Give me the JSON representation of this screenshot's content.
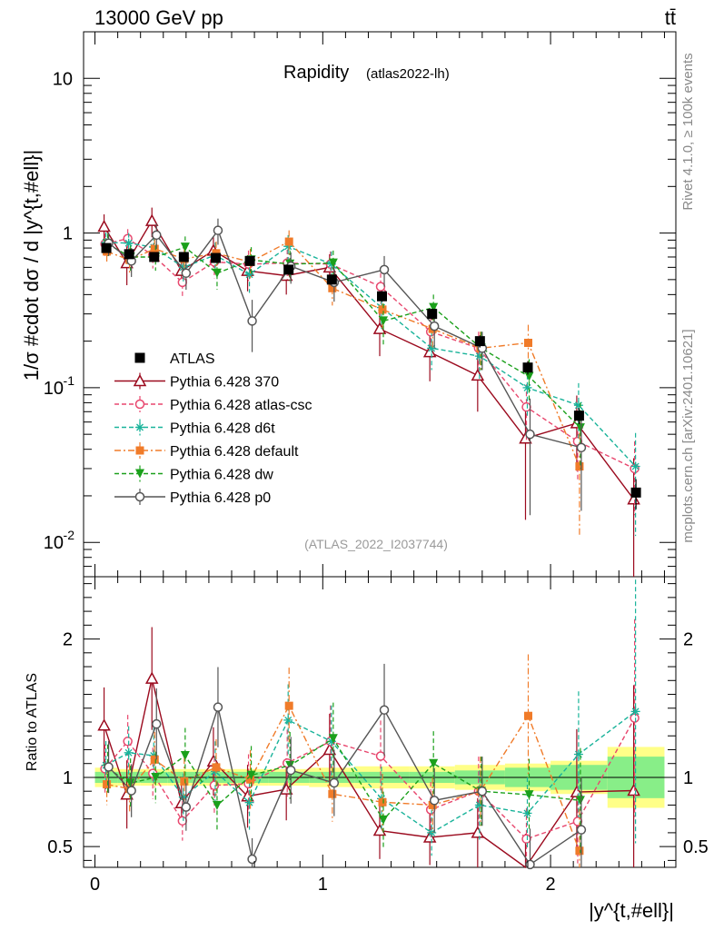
{
  "header": {
    "energy": "13000 GeV pp",
    "process": "tt̄"
  },
  "side_labels": {
    "rivet": "Rivet 4.1.0, ≥ 100k events",
    "mcplots": "mcplots.cern.ch [arXiv:2401.10621]"
  },
  "chart_data": {
    "type": "line",
    "title": "Rapidity",
    "subtitle": "(atlas2022-lh)",
    "analysis": "(ATLAS_2022_I2037744)",
    "xlabel": "|y^{t,#ell}|",
    "ylabel": "1/σ #cdot dσ / d |y^{t,#ell}|",
    "ratio_ylabel": "Ratio to ATLAS",
    "xlim": [
      -0.05,
      2.55
    ],
    "ylim": [
      0.006,
      20
    ],
    "ratio_ylim": [
      0.35,
      2.45
    ],
    "yscale": "log",
    "x_ticks": [
      "0",
      "1",
      "2"
    ],
    "y_ticks": [
      "10^{-2}",
      "10^{-1}",
      "1",
      "10"
    ],
    "ratio_ticks": [
      "0.5",
      "1",
      "2"
    ],
    "legend_position": "middle-left",
    "bins": [
      [
        0.0,
        0.1
      ],
      [
        0.1,
        0.2
      ],
      [
        0.2,
        0.32
      ],
      [
        0.32,
        0.46
      ],
      [
        0.46,
        0.6
      ],
      [
        0.6,
        0.76
      ],
      [
        0.76,
        0.94
      ],
      [
        0.94,
        1.14
      ],
      [
        1.14,
        1.38
      ],
      [
        1.38,
        1.58
      ],
      [
        1.58,
        1.8
      ],
      [
        1.8,
        2.0
      ],
      [
        2.0,
        2.25
      ],
      [
        2.25,
        2.5
      ]
    ],
    "data": {
      "name": "ATLAS",
      "values": [
        0.8,
        0.73,
        0.7,
        0.7,
        0.69,
        0.66,
        0.58,
        0.5,
        0.39,
        0.3,
        0.2,
        0.135,
        0.066,
        0.021
      ],
      "stat_band": [
        0.04,
        0.04,
        0.04,
        0.04,
        0.04,
        0.04,
        0.04,
        0.04,
        0.04,
        0.04,
        0.05,
        0.07,
        0.09,
        0.15
      ],
      "total_band": [
        0.07,
        0.06,
        0.06,
        0.06,
        0.06,
        0.06,
        0.06,
        0.07,
        0.08,
        0.08,
        0.09,
        0.1,
        0.12,
        0.22
      ]
    },
    "series": [
      {
        "name": "Pythia 6.428 370",
        "color": "#9b0a1e",
        "style": "solid",
        "marker": "triangle-open",
        "values": [
          1.1,
          0.64,
          1.2,
          0.57,
          0.77,
          0.57,
          0.53,
          0.6,
          0.24,
          0.17,
          0.12,
          0.047,
          0.059,
          0.019
        ],
        "errors": [
          0.22,
          0.18,
          0.26,
          0.1,
          0.17,
          0.15,
          0.13,
          0.13,
          0.08,
          0.06,
          0.05,
          0.033,
          0.03,
          0.016
        ]
      },
      {
        "name": "Pythia 6.428 atlas-csc",
        "color": "#e8476e",
        "style": "dashed",
        "marker": "circle-open",
        "values": [
          0.85,
          0.92,
          0.72,
          0.48,
          0.65,
          0.63,
          0.64,
          0.63,
          0.45,
          0.23,
          0.18,
          0.075,
          0.045,
          0.03
        ],
        "errors": [
          0.14,
          0.14,
          0.13,
          0.1,
          0.14,
          0.14,
          0.14,
          0.13,
          0.1,
          0.06,
          0.05,
          0.03,
          0.02,
          0.015
        ]
      },
      {
        "name": "Pythia 6.428 d6t",
        "color": "#19b39a",
        "style": "dashed",
        "marker": "star",
        "values": [
          0.87,
          0.86,
          0.81,
          0.6,
          0.72,
          0.54,
          0.82,
          0.63,
          0.33,
          0.18,
          0.16,
          0.1,
          0.077,
          0.031
        ],
        "errors": [
          0.14,
          0.14,
          0.14,
          0.12,
          0.15,
          0.13,
          0.15,
          0.13,
          0.09,
          0.05,
          0.05,
          0.035,
          0.03,
          0.02
        ]
      },
      {
        "name": "Pythia 6.428 default",
        "color": "#f07b29",
        "style": "dashdot",
        "marker": "square",
        "values": [
          0.76,
          0.67,
          0.79,
          0.68,
          0.74,
          0.65,
          0.88,
          0.44,
          0.32,
          0.24,
          0.18,
          0.195,
          0.031,
          0.0
        ],
        "errors": [
          0.12,
          0.13,
          0.14,
          0.12,
          0.14,
          0.14,
          0.16,
          0.1,
          0.08,
          0.06,
          0.05,
          0.06,
          0.02,
          0.0
        ]
      },
      {
        "name": "Pythia 6.428 dw",
        "color": "#1ba01b",
        "style": "dashed",
        "marker": "triangle-down",
        "values": [
          0.85,
          0.7,
          0.7,
          0.81,
          0.55,
          0.67,
          0.63,
          0.64,
          0.27,
          0.33,
          0.18,
          0.118,
          0.055,
          0.0
        ],
        "errors": [
          0.14,
          0.13,
          0.13,
          0.14,
          0.12,
          0.14,
          0.14,
          0.13,
          0.08,
          0.07,
          0.05,
          0.035,
          0.025,
          0.0
        ]
      },
      {
        "name": "Pythia 6.428 p0",
        "color": "#555555",
        "style": "solid",
        "marker": "circle-open",
        "values": [
          0.86,
          0.66,
          0.97,
          0.55,
          1.04,
          0.27,
          0.61,
          0.48,
          0.58,
          0.25,
          0.18,
          0.05,
          0.041,
          0.0
        ],
        "errors": [
          0.15,
          0.14,
          0.18,
          0.12,
          0.2,
          0.1,
          0.14,
          0.12,
          0.13,
          0.07,
          0.05,
          0.035,
          0.025,
          0.0
        ]
      }
    ]
  }
}
